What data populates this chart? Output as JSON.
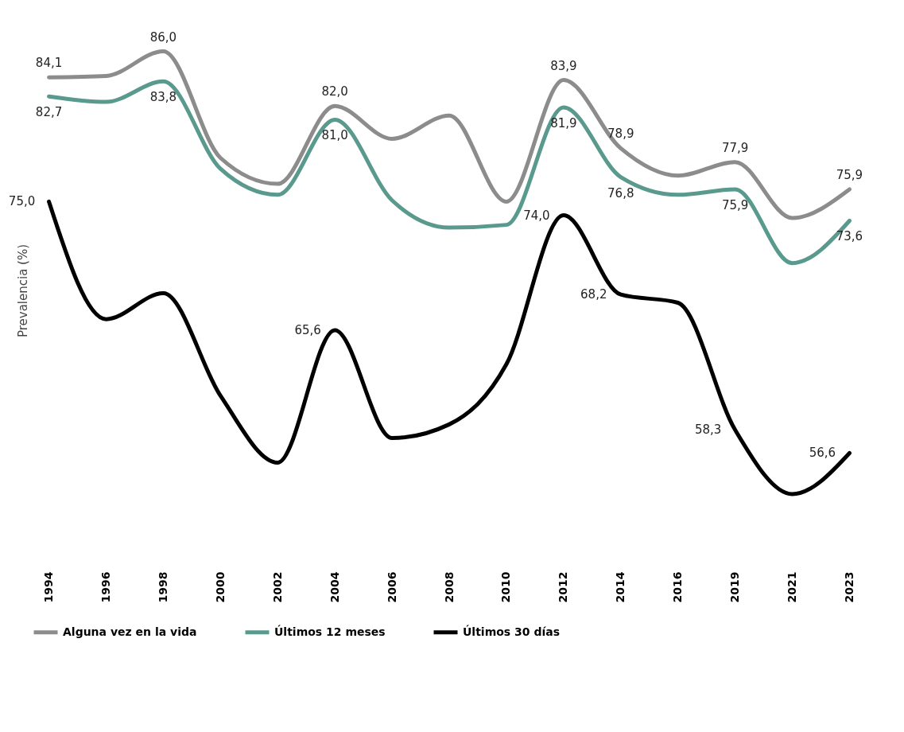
{
  "chart_data": {
    "type": "line",
    "ylabel": "Prevalencia (%)",
    "categories": [
      "1994",
      "1996",
      "1998",
      "2000",
      "2002",
      "2004",
      "2006",
      "2008",
      "2010",
      "2012",
      "2014",
      "2016",
      "2019",
      "2021",
      "2023"
    ],
    "series": [
      {
        "name": "Alguna vez en la vida",
        "color": "#8c8c8c",
        "values": [
          84.1,
          84.2,
          86.0,
          78.2,
          76.3,
          82.0,
          79.6,
          81.3,
          75.0,
          83.9,
          78.9,
          76.9,
          77.9,
          73.8,
          75.9
        ],
        "value_labels": [
          "84,1",
          null,
          "86,0",
          null,
          null,
          "82,0",
          null,
          null,
          null,
          "83,9",
          "78,9",
          null,
          "77,9",
          null,
          "75,9"
        ]
      },
      {
        "name": "Últimos 12 meses",
        "color": "#5a9a8e",
        "values": [
          82.7,
          82.3,
          83.8,
          77.4,
          75.5,
          81.0,
          75.1,
          73.1,
          73.3,
          81.9,
          76.8,
          75.5,
          75.9,
          70.5,
          73.6
        ],
        "value_labels": [
          "82,7",
          null,
          "83,8",
          null,
          null,
          "81,0",
          null,
          null,
          null,
          "81,9",
          "76,8",
          null,
          "75,9",
          null,
          "73,6"
        ]
      },
      {
        "name": "Últimos 30 días",
        "color": "#000000",
        "values": [
          75.0,
          66.4,
          68.3,
          60.8,
          55.9,
          65.6,
          57.7,
          58.7,
          63.1,
          74.0,
          68.2,
          67.6,
          58.3,
          53.6,
          56.6
        ],
        "value_labels": [
          "75,0",
          null,
          null,
          null,
          null,
          "65,6",
          null,
          null,
          null,
          "74,0",
          "68,2",
          null,
          "58,3",
          null,
          "56,6"
        ]
      }
    ],
    "legend": "bottom",
    "grid": false,
    "marker": "none",
    "line_style": "solid"
  }
}
